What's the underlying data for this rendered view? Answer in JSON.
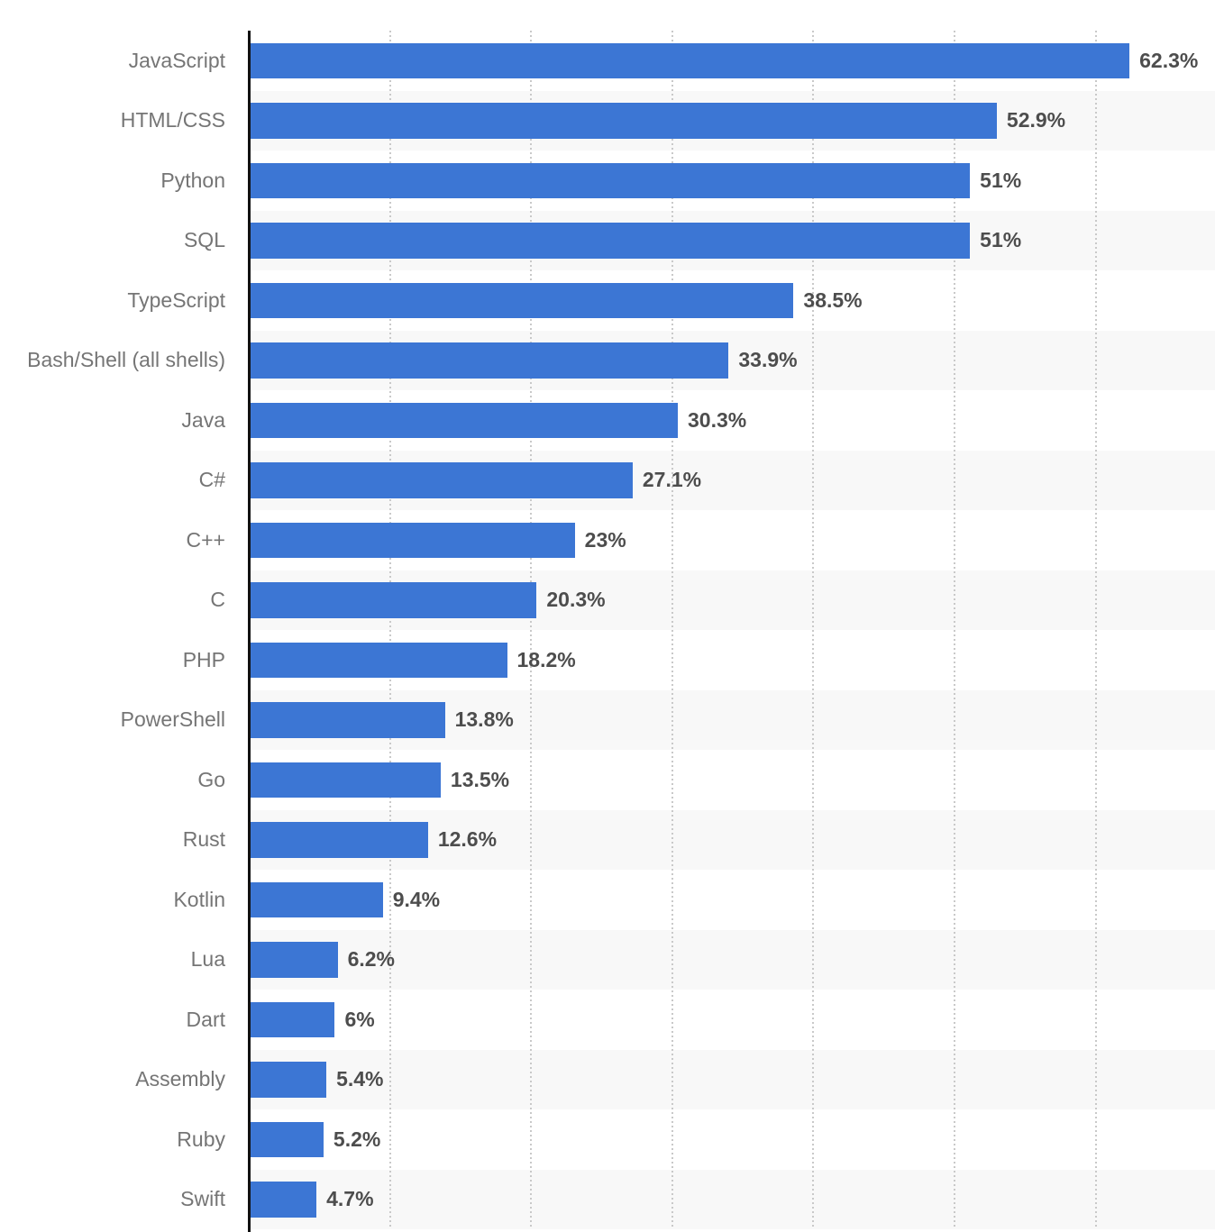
{
  "chart_data": {
    "type": "bar",
    "orientation": "horizontal",
    "categories": [
      "JavaScript",
      "HTML/CSS",
      "Python",
      "SQL",
      "TypeScript",
      "Bash/Shell (all shells)",
      "Java",
      "C#",
      "C++",
      "C",
      "PHP",
      "PowerShell",
      "Go",
      "Rust",
      "Kotlin",
      "Lua",
      "Dart",
      "Assembly",
      "Ruby",
      "Swift"
    ],
    "values": [
      62.3,
      52.9,
      51,
      51,
      38.5,
      33.9,
      30.3,
      27.1,
      23,
      20.3,
      18.2,
      13.8,
      13.5,
      12.6,
      9.4,
      6.2,
      6,
      5.4,
      5.2,
      4.7
    ],
    "value_labels": [
      "62.3%",
      "52.9%",
      "51%",
      "51%",
      "38.5%",
      "33.9%",
      "30.3%",
      "27.1%",
      "23%",
      "20.3%",
      "18.2%",
      "13.8%",
      "13.5%",
      "12.6%",
      "9.4%",
      "6.2%",
      "6%",
      "5.4%",
      "5.2%",
      "4.7%"
    ],
    "unit": "%",
    "xlim": [
      0,
      68.5
    ],
    "grid": true,
    "grid_interval": 10,
    "grid_max": 60,
    "legend": false,
    "row_striping": "alternate"
  },
  "style": {
    "bar_color": "#3c76d4",
    "stripe_color": "#f8f8f8",
    "category_label_color": "#757575",
    "value_label_color": "#4d4d4d",
    "axis_color": "#111111",
    "gridline_color": "#c9c9c9",
    "background_color": "#ffffff"
  }
}
